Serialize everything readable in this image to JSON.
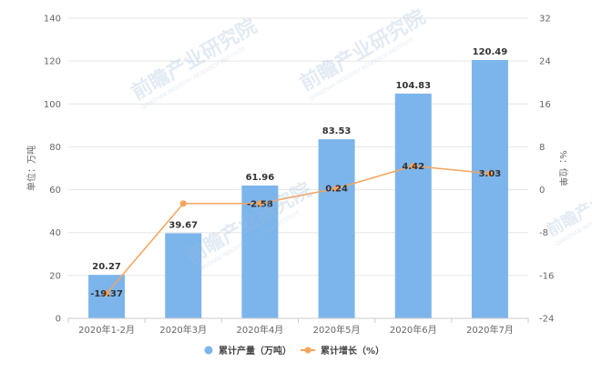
{
  "chart_data": {
    "type": "bar",
    "categories": [
      "2020年1-2月",
      "2020年3月",
      "2020年4月",
      "2020年5月",
      "2020年6月",
      "2020年7月"
    ],
    "series": [
      {
        "name": "累计产量（万吨）",
        "type": "bar",
        "axis": "left",
        "color": "#7cb5ec",
        "values": [
          20.27,
          39.67,
          61.96,
          83.53,
          104.83,
          120.49
        ]
      },
      {
        "name": "累计增长（%）",
        "type": "line",
        "axis": "right",
        "color": "#f7a35c",
        "values": [
          -19.37,
          -2.58,
          -2.58,
          0.24,
          4.42,
          3.03
        ],
        "labels": [
          "-19.37",
          "",
          "-2.58",
          "0.24",
          "4.42",
          "3.03"
        ]
      }
    ],
    "ylabel": "单位：万吨",
    "y2label": "%：位单",
    "ylim": [
      0,
      140
    ],
    "yticks": [
      0,
      20,
      40,
      60,
      80,
      100,
      120,
      140
    ],
    "y2lim": [
      -24,
      32
    ],
    "y2ticks": [
      -24,
      -16,
      -8,
      0,
      8,
      16,
      24,
      32
    ],
    "grid": true,
    "legend_position": "bottom"
  },
  "watermark": {
    "text": "前瞻产业研究院",
    "subtext": "QIANZHAN INDUSTRY RESEARCH INSTITUTE"
  }
}
